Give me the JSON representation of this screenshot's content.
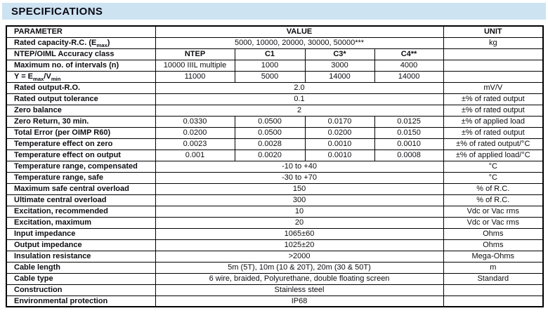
{
  "title": "SPECIFICATIONS",
  "colors": {
    "band": "#cde3f2",
    "border": "#000000",
    "text": "#0d0d12"
  },
  "table": {
    "header": {
      "parameter": "PARAMETER",
      "value": "VALUE",
      "unit": "UNIT"
    },
    "rows": [
      {
        "param": "Rated capacity-R.C. (E[max])",
        "values": [
          "5000, 10000, 20000, 30000, 50000***"
        ],
        "unit": "kg"
      },
      {
        "param": "NTEP/OIML Accuracy class",
        "values": [
          "NTEP",
          "C1",
          "C3*",
          "C4**"
        ],
        "bold_values": true,
        "unit": ""
      },
      {
        "param": "Maximum no. of intervals (n)",
        "values": [
          "10000 IIIL multiple",
          "1000",
          "3000",
          "4000"
        ],
        "unit": ""
      },
      {
        "param": "Y = E[max]/V[min]",
        "values": [
          "11000",
          "5000",
          "14000",
          "14000"
        ],
        "unit": ""
      },
      {
        "param": "Rated output-R.O.",
        "values": [
          "2.0"
        ],
        "unit": "mV/V"
      },
      {
        "param": "Rated output tolerance",
        "values": [
          "0.1"
        ],
        "unit": "±% of rated output"
      },
      {
        "param": "Zero balance",
        "values": [
          "2"
        ],
        "unit": "±% of rated output"
      },
      {
        "param": "Zero Return, 30 min.",
        "values": [
          "0.0330",
          "0.0500",
          "0.0170",
          "0.0125"
        ],
        "unit": "±% of applied load"
      },
      {
        "param": "Total Error (per OIMP R60)",
        "values": [
          "0.0200",
          "0.0500",
          "0.0200",
          "0.0150"
        ],
        "unit": "±% of rated output"
      },
      {
        "param": "Temperature effect on zero",
        "values": [
          "0.0023",
          "0.0028",
          "0.0010",
          "0.0010"
        ],
        "unit": "±% of rated output/°C"
      },
      {
        "param": "Temperature effect on output",
        "values": [
          "0.001",
          "0.0020",
          "0.0010",
          "0.0008"
        ],
        "unit": "±% of applied load/°C"
      },
      {
        "param": "Temperature range, compensated",
        "values": [
          "-10 to +40"
        ],
        "unit": "°C"
      },
      {
        "param": "Temperature range, safe",
        "values": [
          "-30 to +70"
        ],
        "unit": "°C"
      },
      {
        "param": "Maximum safe central overload",
        "values": [
          "150"
        ],
        "unit": "% of R.C."
      },
      {
        "param": "Ultimate central overload",
        "values": [
          "300"
        ],
        "unit": "% of R.C."
      },
      {
        "param": "Excitation, recommended",
        "values": [
          "10"
        ],
        "unit": "Vdc or Vac rms"
      },
      {
        "param": "Excitation, maximum",
        "values": [
          "20"
        ],
        "unit": "Vdc or Vac rms"
      },
      {
        "param": "Input impedance",
        "values": [
          "1065±60"
        ],
        "unit": "Ohms"
      },
      {
        "param": "Output impedance",
        "values": [
          "1025±20"
        ],
        "unit": "Ohms"
      },
      {
        "param": "Insulation resistance",
        "values": [
          ">2000"
        ],
        "unit": "Mega-Ohms"
      },
      {
        "param": "Cable length",
        "values": [
          "5m (5T), 10m (10 & 20T), 20m (30 & 50T)"
        ],
        "unit": "m"
      },
      {
        "param": "Cable type",
        "values": [
          "6 wire, braided, Polyurethane, double floating screen"
        ],
        "unit": "Standard"
      },
      {
        "param": "Construction",
        "values": [
          "Stainless steel"
        ],
        "unit": ""
      },
      {
        "param": "Environmental protection",
        "values": [
          "IP68"
        ],
        "unit": ""
      }
    ]
  }
}
